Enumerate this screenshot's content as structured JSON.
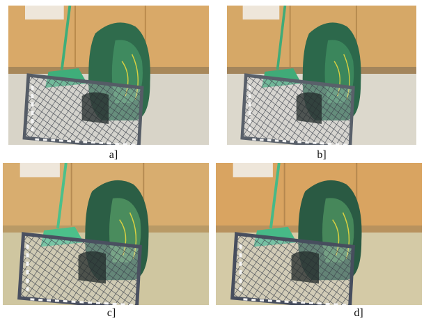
{
  "panels": [
    {
      "label": "a]"
    },
    {
      "label": "b]"
    },
    {
      "label": "c]"
    },
    {
      "label": "d]"
    }
  ]
}
